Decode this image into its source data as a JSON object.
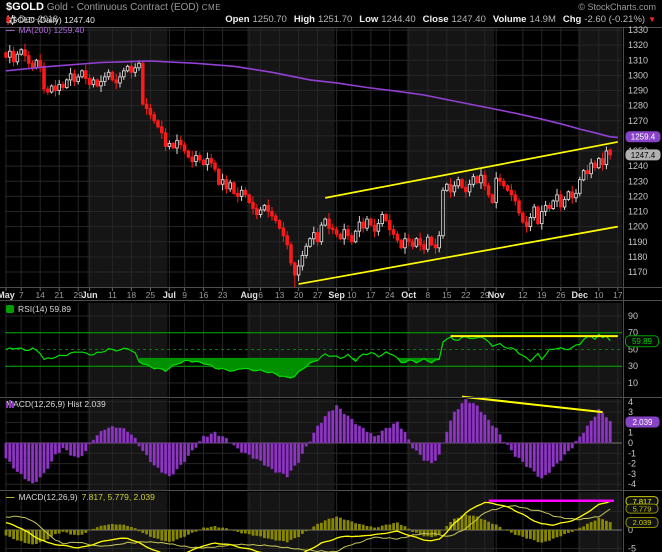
{
  "header": {
    "symbol": "$GOLD",
    "name": "Gold - Continuous Contract (EOD)",
    "exchange": "CME",
    "credit": "© StockCharts.com",
    "date": "13-Dec-2018",
    "quote_labels": {
      "open": "Open",
      "high": "High",
      "low": "Low",
      "close": "Close",
      "volume": "Volume",
      "chg": "Chg"
    },
    "quote_values": {
      "open": "1250.70",
      "high": "1251.70",
      "low": "1244.40",
      "close": "1247.40",
      "volume": "14.9M",
      "chg": "-2.60 (-0.21%)"
    },
    "direction": "down"
  },
  "legends": {
    "main_series": "$GOLD (Daily) 1247.40",
    "ma_dash": "—",
    "ma": "MA(200) 1259.40",
    "rsi": "RSI(14) 59.89",
    "macd_hist": "MACD(12,26,9) Hist 2.039",
    "macd_dash": "—",
    "macd": "MACD(12,26,9)",
    "macd_values": "7.817, 5.779, 2.039"
  },
  "colors": {
    "background": "#000000",
    "band": "#151515",
    "grid": "#262626",
    "border": "#4d4d4d",
    "candle_down": "#ff1a1a",
    "candle_up": "#d8d8d8",
    "ma200": "#9440d4",
    "trendline": "#ffff00",
    "rsi_line": "#00e000",
    "rsi_level": "#00b000",
    "rsi_fill": "#009000",
    "macd_hist_bar": "#8d36c0",
    "macd_line": "#ffff00",
    "signal_line": "#c9c95a",
    "bottom_hist_bar": "#888800",
    "flat_line": "#ff00ff",
    "axis_text": "#c8c8c8",
    "price_bubble_bg": "#b0b0b0",
    "ma_bubble_bg": "#8743c6"
  },
  "chart_data": [
    {
      "type": "candlestick",
      "name": "$GOLD (Daily)",
      "ylim": [
        1163,
        1332
      ],
      "y_ticks": [
        1330,
        1320,
        1310,
        1300,
        1290,
        1280,
        1270,
        1260,
        1250,
        1240,
        1230,
        1220,
        1210,
        1200,
        1190,
        1180,
        1170
      ],
      "x_ticks": [
        [
          "May",
          0,
          1
        ],
        [
          "7",
          4,
          0
        ],
        [
          "14",
          9,
          0
        ],
        [
          "21",
          14,
          0
        ],
        [
          "29",
          19,
          0
        ],
        [
          "Jun",
          22,
          1
        ],
        [
          "11",
          28,
          0
        ],
        [
          "18",
          33,
          0
        ],
        [
          "25",
          38,
          0
        ],
        [
          "Jul",
          43,
          1
        ],
        [
          "9",
          47,
          0
        ],
        [
          "16",
          52,
          0
        ],
        [
          "23",
          57,
          0
        ],
        [
          "Aug",
          64,
          1
        ],
        [
          "6",
          67,
          0
        ],
        [
          "13",
          72,
          0
        ],
        [
          "20",
          77,
          0
        ],
        [
          "27",
          82,
          0
        ],
        [
          "Sep",
          87,
          1
        ],
        [
          "10",
          91,
          0
        ],
        [
          "17",
          96,
          0
        ],
        [
          "24",
          101,
          0
        ],
        [
          "Oct",
          106,
          1
        ],
        [
          "8",
          111,
          0
        ],
        [
          "15",
          116,
          0
        ],
        [
          "22",
          121,
          0
        ],
        [
          "29",
          126,
          0
        ],
        [
          "Nov",
          129,
          1
        ],
        [
          "12",
          136,
          0
        ],
        [
          "19",
          141,
          0
        ],
        [
          "26",
          146,
          0
        ],
        [
          "Dec",
          151,
          1
        ],
        [
          "10",
          156,
          0
        ],
        [
          "17",
          161,
          0
        ]
      ],
      "shaded_months": [
        [
          22,
          43
        ],
        [
          64,
          87
        ],
        [
          106,
          129
        ],
        [
          151,
          163
        ]
      ],
      "closes": [
        1312,
        1316,
        1309,
        1314,
        1317,
        1313,
        1308,
        1305,
        1310,
        1306,
        1291,
        1289,
        1293,
        1290,
        1294,
        1292,
        1297,
        1301,
        1296,
        1299,
        1303,
        1298,
        1294,
        1297,
        1293,
        1296,
        1299,
        1302,
        1297,
        1295,
        1299,
        1303,
        1306,
        1302,
        1305,
        1308,
        1281,
        1278,
        1274,
        1270,
        1266,
        1262,
        1253,
        1255,
        1252,
        1257,
        1254,
        1250,
        1246,
        1243,
        1247,
        1244,
        1241,
        1245,
        1242,
        1238,
        1228,
        1231,
        1225,
        1229,
        1222,
        1220,
        1224,
        1221,
        1216,
        1212,
        1208,
        1211,
        1214,
        1210,
        1207,
        1204,
        1199,
        1194,
        1188,
        1176,
        1168,
        1174,
        1181,
        1187,
        1192,
        1196,
        1190,
        1201,
        1205,
        1199,
        1198,
        1195,
        1192,
        1198,
        1194,
        1190,
        1197,
        1203,
        1199,
        1205,
        1201,
        1197,
        1202,
        1208,
        1204,
        1198,
        1195,
        1191,
        1186,
        1192,
        1190,
        1187,
        1192,
        1188,
        1185,
        1193,
        1188,
        1186,
        1194,
        1224,
        1228,
        1223,
        1227,
        1231,
        1226,
        1223,
        1228,
        1233,
        1229,
        1234,
        1227,
        1221,
        1216,
        1232,
        1230,
        1227,
        1224,
        1221,
        1217,
        1209,
        1203,
        1200,
        1206,
        1213,
        1202,
        1210,
        1214,
        1212,
        1217,
        1221,
        1213,
        1218,
        1223,
        1219,
        1222,
        1231,
        1237,
        1235,
        1242,
        1239,
        1245,
        1241,
        1250,
        1247.4
      ],
      "last_candle": {
        "open": 1250.7,
        "high": 1251.7,
        "low": 1244.4,
        "close": 1247.4
      },
      "special_lows": {
        "76": 1160
      },
      "ma200_points": [
        [
          0,
          1303
        ],
        [
          12,
          1306
        ],
        [
          25,
          1308.5
        ],
        [
          38,
          1309.5
        ],
        [
          50,
          1308
        ],
        [
          60,
          1306
        ],
        [
          70,
          1302
        ],
        [
          80,
          1297
        ],
        [
          87,
          1295
        ],
        [
          95,
          1292
        ],
        [
          103,
          1289.5
        ],
        [
          110,
          1287
        ],
        [
          118,
          1283
        ],
        [
          126,
          1279
        ],
        [
          134,
          1275
        ],
        [
          141,
          1271
        ],
        [
          146,
          1268
        ],
        [
          151,
          1264.5
        ],
        [
          155,
          1262
        ],
        [
          159,
          1259.4
        ],
        [
          161,
          1259
        ]
      ],
      "ma200_last": 1259.4,
      "trendlines": [
        {
          "i1": 77,
          "p1": 1162,
          "i2": 161,
          "p2": 1200
        },
        {
          "i1": 84,
          "p1": 1219,
          "i2": 161,
          "p2": 1256
        }
      ],
      "bubbles": {
        "ma": "1259.4",
        "last_price": "1247.4"
      }
    },
    {
      "type": "line",
      "name": "RSI(14)",
      "last": 59.89,
      "y_ticks": [
        90,
        70,
        50,
        30,
        10
      ],
      "levels": {
        "overbought": 70,
        "mid": 50,
        "oversold": 30
      },
      "points": [
        [
          0,
          50
        ],
        [
          3,
          52
        ],
        [
          5,
          49
        ],
        [
          7,
          51
        ],
        [
          9,
          46
        ],
        [
          10,
          38
        ],
        [
          12,
          40
        ],
        [
          14,
          42
        ],
        [
          17,
          45
        ],
        [
          19,
          48
        ],
        [
          21,
          45
        ],
        [
          23,
          44
        ],
        [
          25,
          47
        ],
        [
          27,
          50
        ],
        [
          30,
          49
        ],
        [
          32,
          52
        ],
        [
          34,
          45
        ],
        [
          35,
          36
        ],
        [
          37,
          31
        ],
        [
          39,
          28
        ],
        [
          42,
          25
        ],
        [
          45,
          33
        ],
        [
          48,
          37
        ],
        [
          50,
          35
        ],
        [
          52,
          34
        ],
        [
          54,
          30
        ],
        [
          56,
          27
        ],
        [
          58,
          26
        ],
        [
          60,
          24
        ],
        [
          62,
          28
        ],
        [
          64,
          26
        ],
        [
          66,
          25
        ],
        [
          68,
          24
        ],
        [
          70,
          22
        ],
        [
          72,
          19
        ],
        [
          74,
          16
        ],
        [
          76,
          18
        ],
        [
          78,
          27
        ],
        [
          80,
          33
        ],
        [
          82,
          38
        ],
        [
          84,
          44
        ],
        [
          86,
          42
        ],
        [
          88,
          40
        ],
        [
          90,
          43
        ],
        [
          92,
          37
        ],
        [
          94,
          44
        ],
        [
          96,
          46
        ],
        [
          98,
          42
        ],
        [
          100,
          46
        ],
        [
          102,
          44
        ],
        [
          104,
          34
        ],
        [
          106,
          37
        ],
        [
          108,
          35
        ],
        [
          110,
          38
        ],
        [
          112,
          35
        ],
        [
          114,
          38
        ],
        [
          115,
          60
        ],
        [
          117,
          64
        ],
        [
          119,
          61
        ],
        [
          121,
          66
        ],
        [
          123,
          62
        ],
        [
          125,
          66
        ],
        [
          126,
          62
        ],
        [
          128,
          55
        ],
        [
          130,
          56
        ],
        [
          132,
          52
        ],
        [
          134,
          50
        ],
        [
          136,
          42
        ],
        [
          138,
          37
        ],
        [
          140,
          44
        ],
        [
          141,
          39
        ],
        [
          143,
          49
        ],
        [
          145,
          52
        ],
        [
          147,
          50
        ],
        [
          149,
          52
        ],
        [
          151,
          57
        ],
        [
          152,
          62
        ],
        [
          154,
          66
        ],
        [
          155,
          63
        ],
        [
          156,
          67
        ],
        [
          157,
          64
        ],
        [
          158,
          67
        ],
        [
          159,
          59.89
        ]
      ],
      "resistance_line": {
        "i1": 117,
        "i2": 161,
        "value": 66
      },
      "bubble": "59.89"
    },
    {
      "type": "bar",
      "name": "MACD(12,26,9) Hist",
      "last": 2.039,
      "y_ticks": [
        4,
        3,
        2,
        1,
        0,
        -1,
        -2,
        -3,
        -4
      ],
      "points": [
        [
          0,
          -1.5
        ],
        [
          3,
          -2.8
        ],
        [
          7,
          -4
        ],
        [
          10,
          -3
        ],
        [
          13,
          -1.2
        ],
        [
          15,
          -0.5
        ],
        [
          17,
          -1.1
        ],
        [
          19,
          -1.5
        ],
        [
          21,
          -0.8
        ],
        [
          23,
          0.4
        ],
        [
          26,
          1.4
        ],
        [
          29,
          1.6
        ],
        [
          32,
          1.2
        ],
        [
          34,
          0.4
        ],
        [
          36,
          -0.8
        ],
        [
          39,
          -2.2
        ],
        [
          43,
          -3.3
        ],
        [
          46,
          -2.2
        ],
        [
          49,
          -0.8
        ],
        [
          52,
          0.6
        ],
        [
          55,
          1.0
        ],
        [
          58,
          0.4
        ],
        [
          61,
          -0.6
        ],
        [
          64,
          -1.2
        ],
        [
          67,
          -1.8
        ],
        [
          70,
          -2.6
        ],
        [
          74,
          -3.2
        ],
        [
          77,
          -1.8
        ],
        [
          79,
          -0.4
        ],
        [
          82,
          1.6
        ],
        [
          85,
          3.0
        ],
        [
          87,
          3.6
        ],
        [
          90,
          2.6
        ],
        [
          93,
          1.6
        ],
        [
          95,
          1.2
        ],
        [
          97,
          0.6
        ],
        [
          100,
          1.4
        ],
        [
          103,
          2.0
        ],
        [
          105,
          1.0
        ],
        [
          107,
          -0.4
        ],
        [
          110,
          -1.6
        ],
        [
          112,
          -2.0
        ],
        [
          114,
          -1.2
        ],
        [
          116,
          1.2
        ],
        [
          118,
          3.0
        ],
        [
          121,
          4.2
        ],
        [
          124,
          3.6
        ],
        [
          127,
          2.2
        ],
        [
          129,
          1.4
        ],
        [
          131,
          0.2
        ],
        [
          134,
          -1.2
        ],
        [
          137,
          -2.2
        ],
        [
          139,
          -2.8
        ],
        [
          141,
          -3.5
        ],
        [
          144,
          -2.4
        ],
        [
          147,
          -1.2
        ],
        [
          149,
          -0.4
        ],
        [
          151,
          0.6
        ],
        [
          153,
          1.6
        ],
        [
          156,
          3.2
        ],
        [
          158,
          2.6
        ],
        [
          159,
          2.039
        ]
      ],
      "trendline": {
        "i1": 120,
        "v1": 4.5,
        "i2": 157,
        "v2": 3.0
      },
      "bubble": "2.039"
    },
    {
      "type": "line",
      "name": "MACD(12,26,9)",
      "last": [
        7.817,
        5.779,
        2.039
      ],
      "y_ticks": [
        0,
        -5
      ],
      "macd_points": [
        [
          0,
          2
        ],
        [
          4,
          0.5
        ],
        [
          7,
          -1.5
        ],
        [
          11,
          -3.5
        ],
        [
          15,
          -4.2
        ],
        [
          19,
          -4.8
        ],
        [
          21,
          -4.5
        ],
        [
          24,
          -3.5
        ],
        [
          28,
          -2.5
        ],
        [
          32,
          -2.2
        ],
        [
          35,
          -3.5
        ],
        [
          39,
          -5.5
        ],
        [
          43,
          -7
        ],
        [
          46,
          -6.5
        ],
        [
          49,
          -5.5
        ],
        [
          52,
          -4.2
        ],
        [
          55,
          -3.6
        ],
        [
          58,
          -3.8
        ],
        [
          61,
          -4.5
        ],
        [
          64,
          -5.2
        ],
        [
          68,
          -6.2
        ],
        [
          71,
          -7.2
        ],
        [
          74,
          -8
        ],
        [
          77,
          -7
        ],
        [
          80,
          -5.2
        ],
        [
          83,
          -3.6
        ],
        [
          87,
          -2.2
        ],
        [
          90,
          -1.6
        ],
        [
          93,
          -1.8
        ],
        [
          95,
          -1.4
        ],
        [
          98,
          -1.2
        ],
        [
          101,
          -0.6
        ],
        [
          103,
          -0.4
        ],
        [
          105,
          -1.0
        ],
        [
          107,
          -1.8
        ],
        [
          110,
          -2.6
        ],
        [
          112,
          -3.0
        ],
        [
          114,
          -2.4
        ],
        [
          116,
          -0.6
        ],
        [
          118,
          1.8
        ],
        [
          121,
          4.6
        ],
        [
          124,
          6.6
        ],
        [
          126,
          7.4
        ],
        [
          128,
          7.2
        ],
        [
          130,
          6.8
        ],
        [
          133,
          5.8
        ],
        [
          136,
          4.2
        ],
        [
          138,
          3.0
        ],
        [
          141,
          1.6
        ],
        [
          144,
          1.4
        ],
        [
          147,
          2.0
        ],
        [
          149,
          2.6
        ],
        [
          151,
          3.4
        ],
        [
          153,
          4.8
        ],
        [
          156,
          6.8
        ],
        [
          159,
          7.817
        ]
      ],
      "signal_rule": "macd_minus_hist",
      "flat_line": {
        "i1": 127,
        "i2": 160,
        "value": 7.9
      },
      "bubbles": {
        "macd": "7.817",
        "signal": "5.779",
        "hist": "2.039"
      }
    }
  ]
}
